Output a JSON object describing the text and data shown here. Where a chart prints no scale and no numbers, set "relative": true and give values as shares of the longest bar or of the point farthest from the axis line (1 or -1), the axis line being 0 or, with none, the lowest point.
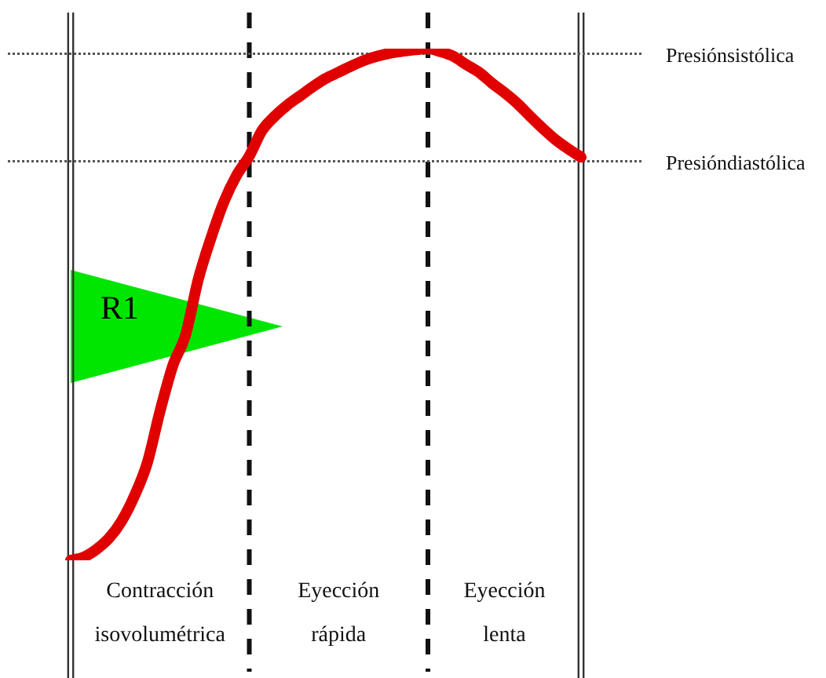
{
  "chart_data": {
    "type": "line",
    "relative": true,
    "tick_labels": false,
    "marker": "none",
    "line_style": "solid",
    "categories": [
      null,
      null,
      null,
      null,
      null,
      null,
      null,
      null,
      null,
      null,
      null,
      null,
      null,
      null,
      null,
      null,
      null,
      null,
      null,
      null,
      null,
      null,
      null,
      null,
      null,
      null,
      null,
      null,
      null,
      null,
      null,
      null,
      null,
      null,
      null,
      null,
      null,
      null,
      null,
      null,
      null
    ],
    "series": [
      {
        "color": "#e00000",
        "values": [
          0,
          0.006,
          0.021,
          0.043,
          0.077,
          0.126,
          0.19,
          0.291,
          0.38,
          0.44,
          0.549,
          0.63,
          0.7,
          0.752,
          0.79,
          0.84,
          0.868,
          0.89,
          0.908,
          0.926,
          0.942,
          0.954,
          0.966,
          0.977,
          0.985,
          0.991,
          0.995,
          0.998,
          1,
          0.994,
          0.985,
          0.969,
          0.954,
          0.933,
          0.914,
          0.893,
          0.868,
          0.844,
          0.822,
          0.804,
          0.788
        ]
      }
    ],
    "ref_lines": [
      {
        "axis": "y",
        "value": 0.99,
        "label": "Presiónsistólica",
        "line_style": "dotted",
        "color": "#555555"
      },
      {
        "axis": "y",
        "value": 0.78,
        "label": "Presióndiastólica",
        "line_style": "dotted",
        "color": "#555555"
      }
    ],
    "annotations": [
      "R1",
      "Contracción isovolumétrica",
      "Eyección rápida",
      "Eyección lenta"
    ]
  }
}
